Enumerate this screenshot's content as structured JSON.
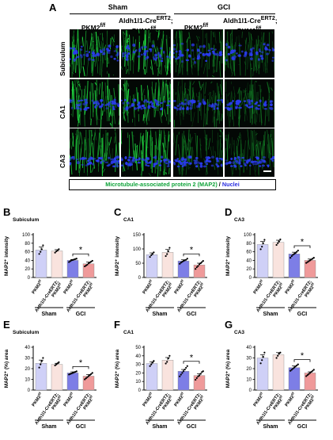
{
  "panel_a": {
    "letter": "A",
    "groups": [
      "Sham",
      "GCI"
    ],
    "columns": [
      {
        "line1": "",
        "line2": "PKM2",
        "sup": "f/f"
      },
      {
        "line1": "Aldh1l1-Cre",
        "line1_sup": "ERT2",
        "line1_tail": ";",
        "line2": "PKM2",
        "sup": "f/f"
      },
      {
        "line1": "",
        "line2": "PKM2",
        "sup": "f/f"
      },
      {
        "line1": "Aldh1l1-Cre",
        "line1_sup": "ERT2",
        "line1_tail": ";",
        "line2": "PKM2",
        "sup": "f/f"
      }
    ],
    "rows": [
      "Subiculum",
      "CA1",
      "CA3"
    ],
    "caption_green": "Microtubule-associated protein 2 (MAP2)",
    "caption_sep": " / ",
    "caption_blue": "Nuclei",
    "colors": {
      "green": "#10a33a",
      "blue": "#2a2ee0"
    }
  },
  "chart_data": [
    {
      "type": "bar",
      "letter": "B",
      "title": "Subiculum",
      "ylabel": "MAP2⁺ intensity",
      "ylim": [
        0,
        100
      ],
      "yticks": [
        0,
        20,
        40,
        60,
        80,
        100
      ],
      "categories": [
        "PKM2f/f",
        "Aldh1l1-CreERT2; PKM2f/f",
        "PKM2f/f",
        "Aldh1l1-CreERT2; PKM2f/f"
      ],
      "groups": [
        {
          "label": "Sham",
          "span": [
            0,
            1
          ]
        },
        {
          "label": "GCI",
          "span": [
            2,
            3
          ]
        }
      ],
      "values": [
        64,
        62,
        40,
        32
      ],
      "errors": [
        7,
        3,
        2,
        4
      ],
      "points": [
        [
          55,
          60,
          66,
          75
        ],
        [
          58,
          61,
          63,
          66
        ],
        [
          36,
          38,
          40,
          41,
          42,
          43,
          44
        ],
        [
          26,
          28,
          30,
          33,
          35,
          37,
          39
        ]
      ],
      "significance": {
        "between": [
          2,
          3
        ],
        "label": "*"
      }
    },
    {
      "type": "bar",
      "letter": "C",
      "title": "CA1",
      "ylabel": "MAP2⁺ intensity",
      "ylim": [
        0,
        150
      ],
      "yticks": [
        0,
        50,
        100,
        150
      ],
      "categories": [
        "PKM2f/f",
        "Aldh1l1-CreERT2; PKM2f/f",
        "PKM2f/f",
        "Aldh1l1-CreERT2; PKM2f/f"
      ],
      "groups": [
        {
          "label": "Sham",
          "span": [
            0,
            1
          ]
        },
        {
          "label": "GCI",
          "span": [
            2,
            3
          ]
        }
      ],
      "values": [
        80,
        88,
        58,
        44
      ],
      "errors": [
        6,
        10,
        4,
        6
      ],
      "points": [
        [
          72,
          78,
          82,
          88
        ],
        [
          75,
          82,
          92,
          104
        ],
        [
          48,
          52,
          55,
          58,
          60,
          62,
          66
        ],
        [
          30,
          36,
          40,
          46,
          50,
          54,
          58
        ]
      ],
      "significance": {
        "between": [
          2,
          3
        ],
        "label": "*"
      }
    },
    {
      "type": "bar",
      "letter": "D",
      "title": "CA3",
      "ylabel": "MAP2⁺ intensity",
      "ylim": [
        0,
        100
      ],
      "yticks": [
        0,
        20,
        40,
        60,
        80,
        100
      ],
      "categories": [
        "PKM2f/f",
        "Aldh1l1-CreERT2; PKM2f/f",
        "PKM2f/f",
        "Aldh1l1-CreERT2; PKM2f/f"
      ],
      "groups": [
        {
          "label": "Sham",
          "span": [
            0,
            1
          ]
        },
        {
          "label": "GCI",
          "span": [
            2,
            3
          ]
        }
      ],
      "values": [
        77,
        82,
        55,
        40
      ],
      "errors": [
        7,
        5,
        4,
        3
      ],
      "points": [
        [
          66,
          72,
          80,
          88
        ],
        [
          76,
          80,
          84,
          89
        ],
        [
          46,
          50,
          53,
          55,
          57,
          60,
          63
        ],
        [
          34,
          36,
          38,
          40,
          42,
          44,
          46
        ]
      ],
      "significance": {
        "between": [
          2,
          3
        ],
        "label": "*"
      }
    },
    {
      "type": "bar",
      "letter": "E",
      "title": "Subiculum",
      "ylabel": "MAP2⁺ (%) area",
      "ylim": [
        0,
        40
      ],
      "yticks": [
        0,
        10,
        20,
        30,
        40
      ],
      "categories": [
        "PKM2f/f",
        "Aldh1l1-CreERT2; PKM2f/f",
        "PKM2f/f",
        "Aldh1l1-CreERT2; PKM2f/f"
      ],
      "groups": [
        {
          "label": "Sham",
          "span": [
            0,
            1
          ]
        },
        {
          "label": "GCI",
          "span": [
            2,
            3
          ]
        }
      ],
      "values": [
        25,
        24,
        16,
        13
      ],
      "errors": [
        3,
        1,
        1,
        1.5
      ],
      "points": [
        [
          21,
          24,
          27,
          30
        ],
        [
          23,
          24,
          25,
          26
        ],
        [
          14.5,
          15,
          15.5,
          16,
          16.5,
          17,
          17.5
        ],
        [
          10,
          11,
          12,
          13,
          14,
          15,
          16
        ]
      ],
      "significance": {
        "between": [
          2,
          3
        ],
        "label": "*"
      }
    },
    {
      "type": "bar",
      "letter": "F",
      "title": "CA1",
      "ylabel": "MAP2⁺ (%) area",
      "ylim": [
        0,
        50
      ],
      "yticks": [
        0,
        10,
        20,
        30,
        40,
        50
      ],
      "categories": [
        "PKM2f/f",
        "Aldh1l1-CreERT2; PKM2f/f",
        "PKM2f/f",
        "Aldh1l1-CreERT2; PKM2f/f"
      ],
      "groups": [
        {
          "label": "Sham",
          "span": [
            0,
            1
          ]
        },
        {
          "label": "GCI",
          "span": [
            2,
            3
          ]
        }
      ],
      "values": [
        31,
        35,
        22,
        17
      ],
      "errors": [
        2,
        3,
        2,
        2
      ],
      "points": [
        [
          28,
          30,
          32,
          34
        ],
        [
          31,
          33,
          37,
          40
        ],
        [
          16,
          18,
          20,
          22,
          24,
          26,
          28
        ],
        [
          12,
          14,
          16,
          17,
          19,
          21,
          22
        ]
      ],
      "significance": {
        "between": [
          2,
          3
        ],
        "label": "*"
      }
    },
    {
      "type": "bar",
      "letter": "G",
      "title": "CA3",
      "ylabel": "MAP2⁺ (%) area",
      "ylim": [
        0,
        40
      ],
      "yticks": [
        0,
        10,
        20,
        30,
        40
      ],
      "categories": [
        "PKM2f/f",
        "Aldh1l1-CreERT2; PKM2f/f",
        "PKM2f/f",
        "Aldh1l1-CreERT2; PKM2f/f"
      ],
      "groups": [
        {
          "label": "Sham",
          "span": [
            0,
            1
          ]
        },
        {
          "label": "GCI",
          "span": [
            2,
            3
          ]
        }
      ],
      "values": [
        30,
        33,
        21,
        16
      ],
      "errors": [
        3,
        2,
        1.5,
        1
      ],
      "points": [
        [
          25,
          28,
          31,
          35
        ],
        [
          30,
          32,
          34,
          35
        ],
        [
          18,
          19,
          20,
          21,
          22,
          23,
          24
        ],
        [
          13,
          14,
          15,
          16,
          17,
          18,
          19
        ]
      ],
      "significance": {
        "between": [
          2,
          3
        ],
        "label": "*"
      }
    }
  ],
  "bar_colors": [
    "#cfd0f7",
    "#f9e3de",
    "#7d7ee6",
    "#ef9a9a"
  ],
  "point_color": "#000000"
}
